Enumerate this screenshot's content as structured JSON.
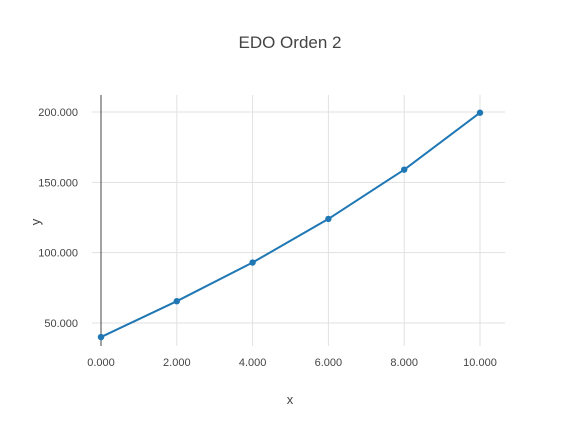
{
  "chart_data": {
    "type": "line",
    "title": "EDO Orden 2",
    "xlabel": "x",
    "ylabel": "y",
    "xlim": [
      0,
      10
    ],
    "ylim": [
      40,
      205
    ],
    "grid": true,
    "x_ticks": [
      0,
      2,
      4,
      6,
      8,
      10
    ],
    "x_tick_labels": [
      "0.000",
      "2.000",
      "4.000",
      "6.000",
      "8.000",
      "10.000"
    ],
    "y_ticks": [
      50,
      100,
      150,
      200
    ],
    "y_tick_labels": [
      "50.000",
      "100.000",
      "150.000",
      "200.000"
    ],
    "series": [
      {
        "color": "#1f77b4",
        "x": [
          0,
          2,
          4,
          6,
          8,
          10
        ],
        "y": [
          40,
          65.5,
          93,
          124,
          159,
          199.5
        ]
      }
    ]
  }
}
